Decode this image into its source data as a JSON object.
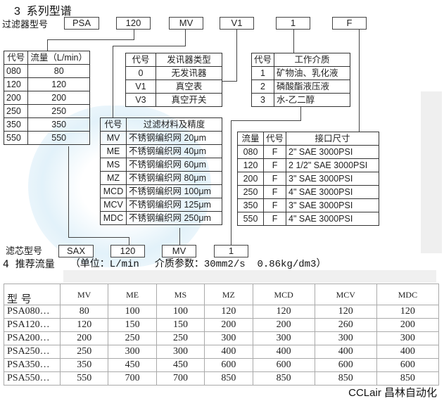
{
  "section3_title": "3  系列型谱",
  "filter_model_label": "过滤器型号",
  "filter_model_codes": [
    "PSA",
    "120",
    "MV",
    "V1",
    "1",
    "F"
  ],
  "flow_table": {
    "headers": [
      "代号",
      "流量（L/min）"
    ],
    "rows": [
      [
        "080",
        "80"
      ],
      [
        "120",
        "120"
      ],
      [
        "200",
        "200"
      ],
      [
        "250",
        "250"
      ],
      [
        "350",
        "350"
      ],
      [
        "550",
        "550"
      ]
    ]
  },
  "signal_table": {
    "headers": [
      "代号",
      "发讯器类型"
    ],
    "rows": [
      [
        "0",
        "无发讯器"
      ],
      [
        "V1",
        "真空表"
      ],
      [
        "V3",
        "真空开关"
      ]
    ]
  },
  "medium_table": {
    "headers": [
      "代号",
      "工作介质"
    ],
    "rows": [
      [
        "1",
        "矿物油、乳化液"
      ],
      [
        "2",
        "磷酸酯液压液"
      ],
      [
        "3",
        "水-乙二醇"
      ]
    ]
  },
  "material_table": {
    "headers": [
      "代号",
      "过滤材料及精度"
    ],
    "rows": [
      [
        "MV",
        "不锈钢编织网 20μm"
      ],
      [
        "ME",
        "不锈钢编织网 40μm"
      ],
      [
        "MS",
        "不锈钢编织网 60μm"
      ],
      [
        "MZ",
        "不锈钢编织网 80μm"
      ],
      [
        "MCD",
        "不锈钢编织网 100μm"
      ],
      [
        "MCV",
        "不锈钢编织网 125μm"
      ],
      [
        "MDC",
        "不锈钢编织网 250μm"
      ]
    ]
  },
  "port_table": {
    "headers": [
      "流量",
      "代号",
      "接口尺寸"
    ],
    "rows": [
      [
        "080",
        "F",
        "2\" SAE 3000PSI"
      ],
      [
        "120",
        "F",
        "2 1/2\" SAE 3000PSI"
      ],
      [
        "200",
        "F",
        "3\" SAE 3000PSI"
      ],
      [
        "250",
        "F",
        "4\" SAE 3000PSI"
      ],
      [
        "350",
        "F",
        "3\" SAE 3000PSI"
      ],
      [
        "550",
        "F",
        "4\" SAE 3000PSI"
      ]
    ]
  },
  "element_model_label": "滤芯型号",
  "element_model_codes": [
    "SAX",
    "120",
    "MV",
    "1"
  ],
  "section4_title": "4  推荐流量",
  "section4_units": "（单位：L/min",
  "section4_params": "介质参数：30mm2/s  0.86kg/dm3）",
  "flow_recommend": {
    "corner": "型 号",
    "columns": [
      "MV",
      "ME",
      "MS",
      "MZ",
      "MCD",
      "MCV",
      "MDC"
    ],
    "rows": [
      {
        "model": "PSA080…",
        "values": [
          "80",
          "100",
          "100",
          "120",
          "120",
          "120",
          "120"
        ]
      },
      {
        "model": "PSA120…",
        "values": [
          "120",
          "150",
          "150",
          "200",
          "200",
          "260",
          "200"
        ]
      },
      {
        "model": "PSA200…",
        "values": [
          "200",
          "250",
          "250",
          "300",
          "300",
          "300",
          "300"
        ]
      },
      {
        "model": "PSA250…",
        "values": [
          "250",
          "300",
          "300",
          "400",
          "400",
          "400",
          "400"
        ]
      },
      {
        "model": "PSA350…",
        "values": [
          "350",
          "450",
          "450",
          "600",
          "600",
          "600",
          "600"
        ]
      },
      {
        "model": "PSA550…",
        "values": [
          "550",
          "700",
          "700",
          "850",
          "850",
          "850",
          "850"
        ]
      }
    ]
  },
  "watermark": "CCLair 昌林自动化",
  "colors": {
    "watermark_blue": "#d6ecf7",
    "watermark_gray": "#e4e4e4"
  }
}
